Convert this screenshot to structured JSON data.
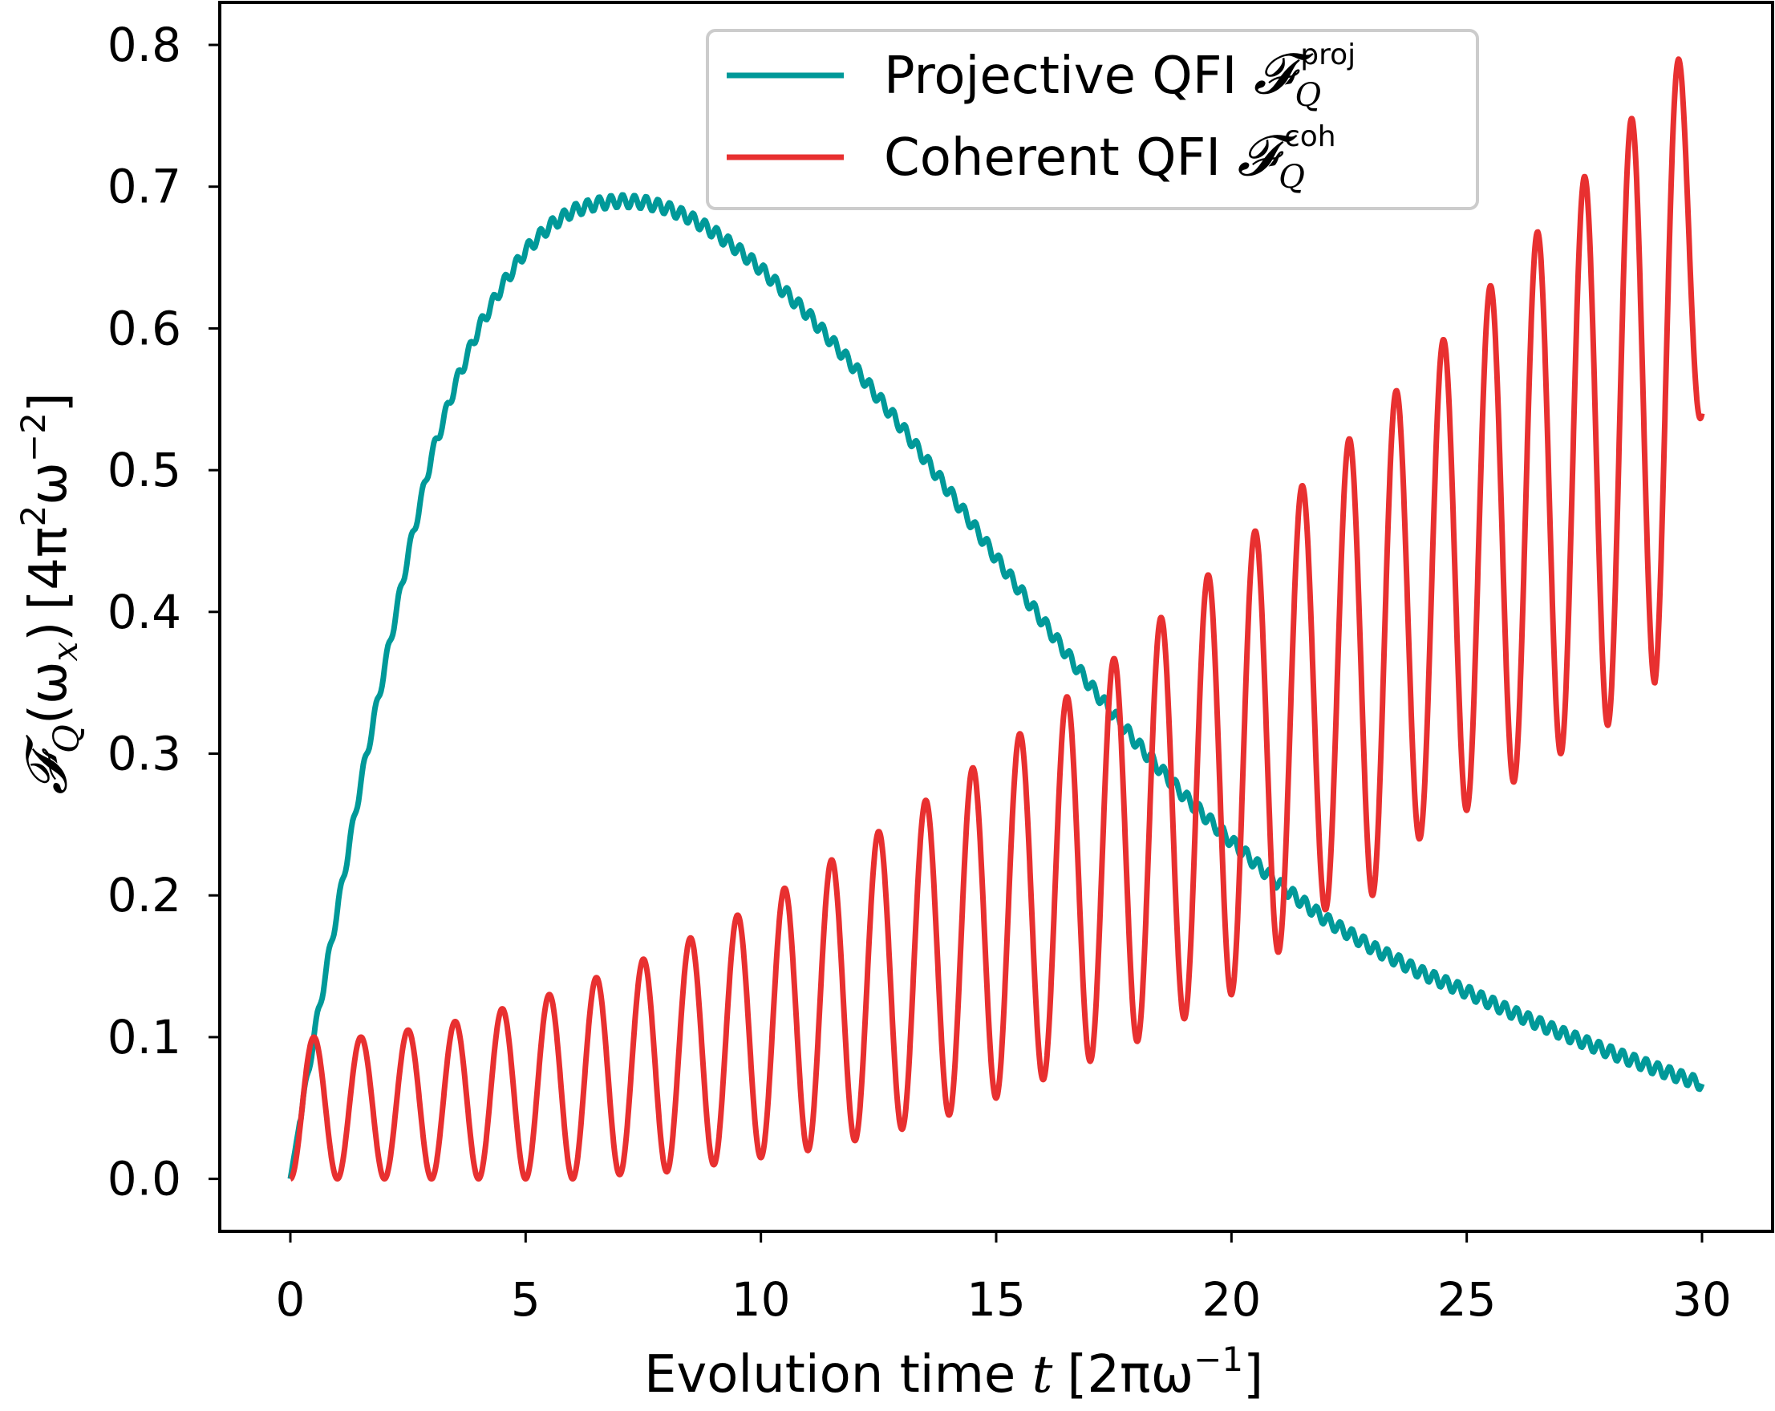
{
  "chart_data": {
    "type": "line",
    "xlabel": "Evolution time t [2πω⁻¹]",
    "xlabel_parts": {
      "text": "Evolution time ",
      "var": "t",
      "unit": "[2πω",
      "unit_exp": "−1",
      "unit_close": "]"
    },
    "ylabel": "𝓕_Q(ω_x) [4π²ω⁻²]",
    "ylabel_parts": {
      "sym": "𝓕",
      "sub": "Q",
      "arg": "(ω",
      "arg_sub": "x",
      "arg_close": ")",
      "unit": "[4π",
      "unit_sup1": "2",
      "unit_mid": "ω",
      "unit_sup2": "−2",
      "unit_close": "]"
    },
    "xlim": [
      -1.5,
      31.5
    ],
    "ylim": [
      -0.037,
      0.83
    ],
    "xticks": [
      0,
      5,
      10,
      15,
      20,
      25,
      30
    ],
    "xtick_labels": [
      "0",
      "5",
      "10",
      "15",
      "20",
      "25",
      "30"
    ],
    "yticks": [
      0.0,
      0.1,
      0.2,
      0.3,
      0.4,
      0.5,
      0.6,
      0.7,
      0.8
    ],
    "ytick_labels": [
      "0.0",
      "0.1",
      "0.2",
      "0.3",
      "0.4",
      "0.5",
      "0.6",
      "0.7",
      "0.8"
    ],
    "grid": false,
    "legend_position": "top-center",
    "series": [
      {
        "name": "Projective QFI 𝓕_Q^proj",
        "legend_text": "Projective QFI ",
        "legend_sym": "𝓕",
        "legend_sub": "Q",
        "legend_sup": "proj",
        "color": "#009999",
        "x": [
          0,
          0.25,
          0.5,
          1,
          1.5,
          2,
          2.5,
          3,
          3.5,
          4,
          4.5,
          5,
          5.5,
          6,
          6.5,
          7,
          7.5,
          8,
          8.5,
          9,
          9.5,
          10,
          11,
          12,
          13,
          14,
          15,
          16,
          17,
          18,
          19,
          20,
          21,
          22,
          23,
          24,
          25,
          26,
          27,
          28,
          29,
          30
        ],
        "y": [
          0.0,
          0.05,
          0.1,
          0.19,
          0.28,
          0.36,
          0.44,
          0.51,
          0.56,
          0.6,
          0.63,
          0.655,
          0.672,
          0.683,
          0.688,
          0.69,
          0.689,
          0.685,
          0.678,
          0.668,
          0.656,
          0.642,
          0.61,
          0.572,
          0.53,
          0.485,
          0.438,
          0.393,
          0.348,
          0.307,
          0.27,
          0.238,
          0.208,
          0.183,
          0.163,
          0.146,
          0.132,
          0.117,
          0.103,
          0.09,
          0.078,
          0.067
        ]
      },
      {
        "name": "Coherent QFI 𝓕_Q^coh",
        "legend_text": "Coherent QFI ",
        "legend_sym": "𝓕",
        "legend_sub": "Q",
        "legend_sup": "coh",
        "color": "#e83030",
        "peaks_x": [
          0.5,
          1.5,
          2.5,
          3.5,
          4.5,
          5.5,
          6.5,
          7.5,
          8.5,
          9.5,
          10.5,
          11.5,
          12.5,
          13.5,
          14.5,
          15.5,
          16.5,
          17.5,
          18.5,
          19.5,
          20.5,
          21.5,
          22.5,
          23.5,
          24.5,
          25.5,
          26.5,
          27.5,
          28.5,
          29.5
        ],
        "peaks_y": [
          0.1,
          0.1,
          0.105,
          0.111,
          0.12,
          0.13,
          0.142,
          0.155,
          0.17,
          0.186,
          0.205,
          0.225,
          0.245,
          0.267,
          0.29,
          0.314,
          0.34,
          0.367,
          0.396,
          0.426,
          0.457,
          0.489,
          0.522,
          0.556,
          0.592,
          0.63,
          0.668,
          0.707,
          0.748,
          0.79
        ],
        "troughs_x": [
          0,
          1,
          2,
          3,
          4,
          5,
          6,
          7,
          8,
          9,
          10,
          11,
          12,
          13,
          14,
          15,
          16,
          17,
          18,
          19,
          20,
          21,
          22,
          23,
          24,
          25,
          26,
          27,
          28,
          29,
          30
        ],
        "troughs_y": [
          0.0,
          0.0,
          0.0,
          0.0,
          0.0,
          0.0,
          0.0,
          0.003,
          0.005,
          0.01,
          0.015,
          0.02,
          0.027,
          0.035,
          0.045,
          0.057,
          0.07,
          0.083,
          0.097,
          0.113,
          0.13,
          0.16,
          0.19,
          0.2,
          0.24,
          0.26,
          0.28,
          0.3,
          0.32,
          0.35,
          0.54
        ]
      }
    ]
  }
}
